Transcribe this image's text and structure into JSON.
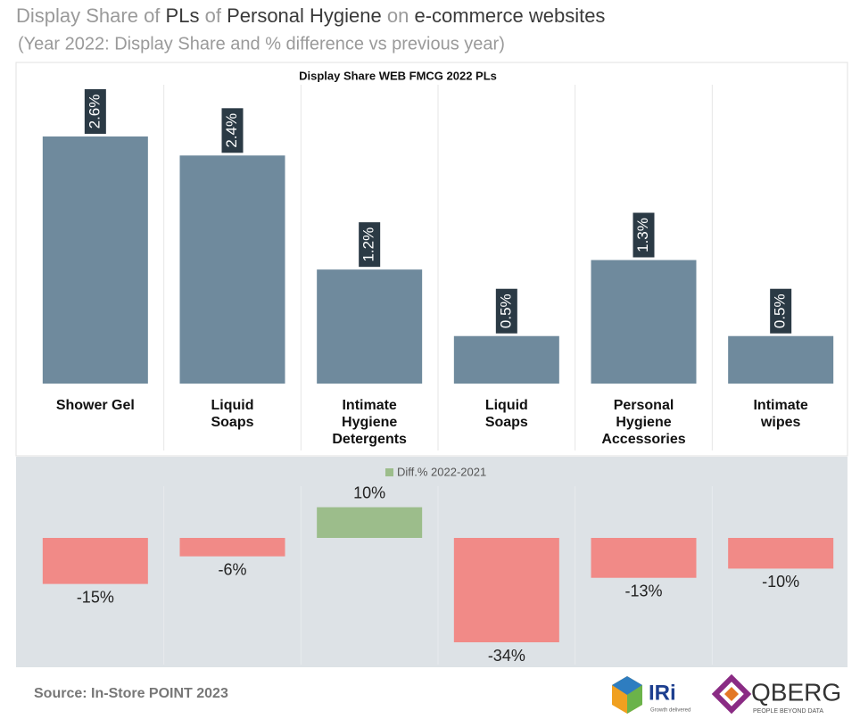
{
  "header": {
    "title_parts": [
      "Display Share of",
      "PLs",
      "of",
      "Personal Hygiene",
      "on",
      "e-commerce websites"
    ],
    "subtitle": "(Year 2022: Display Share and % difference vs previous year)"
  },
  "chart_data": [
    {
      "type": "bar",
      "title": "Display Share WEB FMCG 2022 PLs",
      "categories": [
        "Shower Gel",
        "Liquid\nSoaps",
        "Intimate\nHygiene\nDetergents",
        "Liquid\nSoaps",
        "Personal\nHygiene\nAccessories",
        "Intimate\nwipes"
      ],
      "values": [
        2.6,
        2.4,
        1.2,
        0.5,
        1.3,
        0.5
      ],
      "value_labels": [
        "2.6%",
        "2.4%",
        "1.2%",
        "0.5%",
        "1.3%",
        "0.5%"
      ],
      "color": "#6f8a9d"
    },
    {
      "type": "diverging-bar",
      "series": [
        {
          "name": "Diff.% 2022-2021",
          "color": "#9cbd8b",
          "negative_color": "#f18a87",
          "values": [
            -15,
            -6,
            10,
            -34,
            -13,
            -10
          ],
          "value_labels": [
            "-15%",
            "-6%",
            "10%",
            "-34%",
            "-13%",
            "-10%"
          ]
        }
      ]
    }
  ],
  "footer": {
    "source": "Source: In-Store POINT 2023",
    "logo1": "IRi",
    "logo1_tagline": "Growth delivered",
    "logo2": "QBERG",
    "logo2_tagline": "PEOPLE BEYOND DATA"
  }
}
